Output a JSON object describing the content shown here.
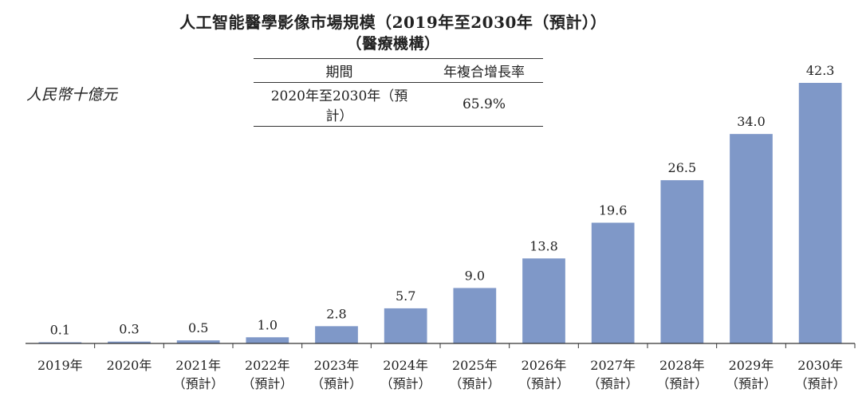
{
  "chart_data": {
    "type": "bar",
    "title": "人工智能醫學影像市場規模（2019年至2030年（預計））",
    "subtitle": "（醫療機構）",
    "ylabel": "人民幣十億元",
    "xlabel": "",
    "categories": [
      "2019年",
      "2020年",
      "2021年",
      "2022年",
      "2023年",
      "2024年",
      "2025年",
      "2026年",
      "2027年",
      "2028年",
      "2029年",
      "2030年"
    ],
    "category_notes": [
      "",
      "",
      "（預計）",
      "（預計）",
      "（預計）",
      "（預計）",
      "（預計）",
      "（預計）",
      "（預計）",
      "（預計）",
      "（預計）",
      "（預計）"
    ],
    "values": [
      0.1,
      0.3,
      0.5,
      1.0,
      2.8,
      5.7,
      9.0,
      13.8,
      19.6,
      26.5,
      34.0,
      42.3
    ],
    "data_labels": [
      "0.1",
      "0.3",
      "0.5",
      "1.0",
      "2.8",
      "5.7",
      "9.0",
      "13.8",
      "19.6",
      "26.5",
      "34.0",
      "42.3"
    ],
    "ylim": [
      0,
      42.3
    ],
    "bar_color": "#7f98c8",
    "grid": false,
    "legend": "none"
  },
  "cagr_table": {
    "headers": [
      "期間",
      "年複合增長率"
    ],
    "rows": [
      [
        "2020年至2030年（預計）",
        "65.9%"
      ]
    ]
  }
}
